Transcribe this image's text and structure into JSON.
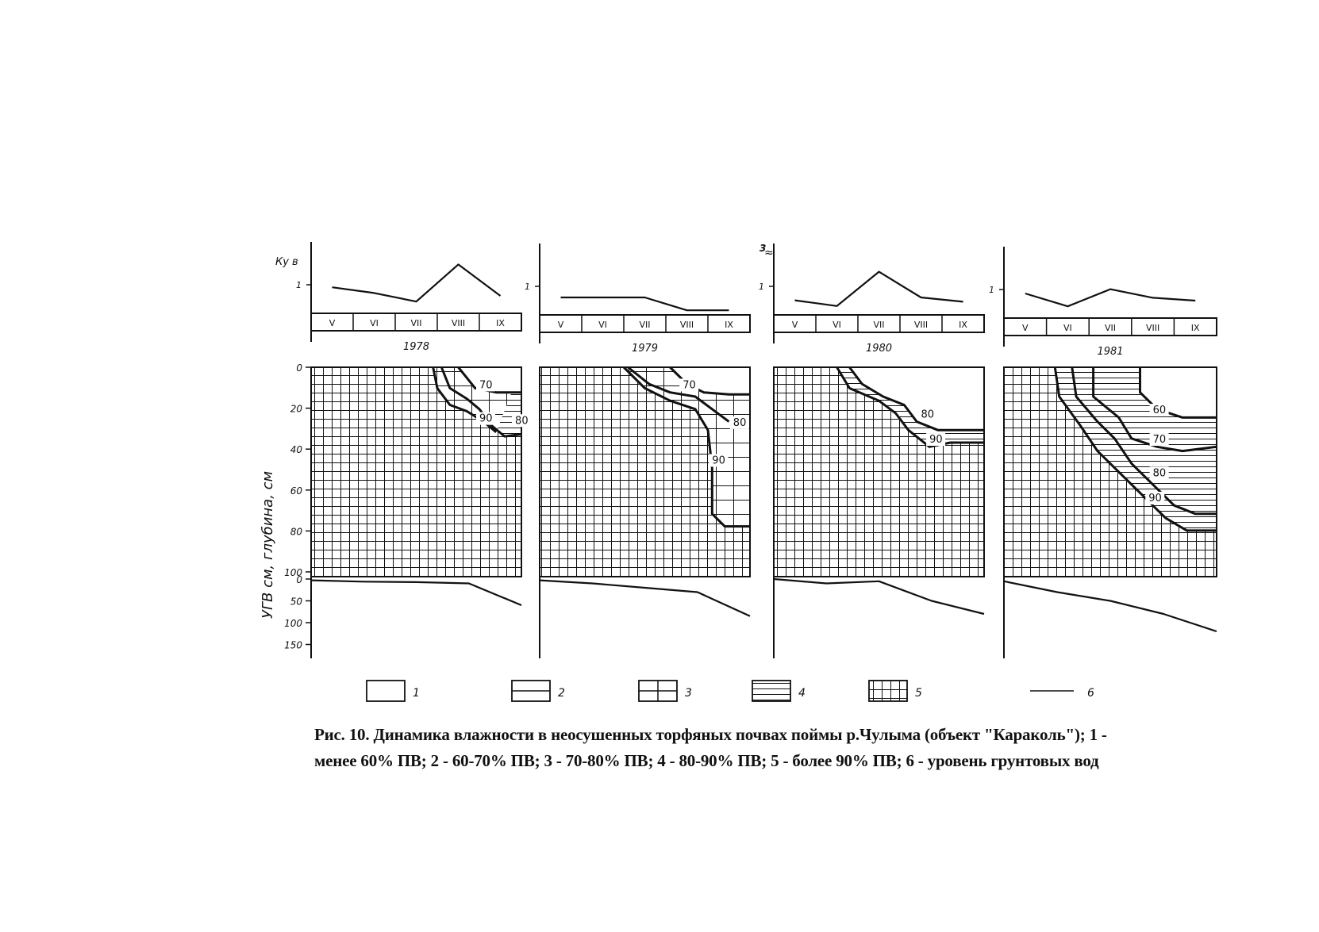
{
  "figure": {
    "kuv_label": "Ку в",
    "kuv_tick": "1",
    "kuv_break_label": "3",
    "depth_axis_title": "УГВ см,   глубина, см",
    "depth_ticks": [
      "0",
      "20",
      "40",
      "60",
      "80",
      "100"
    ],
    "gw_ticks": [
      "0",
      "50",
      "100",
      "150"
    ],
    "months": [
      "V",
      "VI",
      "VII",
      "VIII",
      "IX"
    ]
  },
  "chart_data": [
    {
      "type": "line",
      "title": "1978",
      "kuv": {
        "x": [
          "V",
          "VI",
          "VII",
          "VIII",
          "IX"
        ],
        "y": [
          0.8,
          0.6,
          0.3,
          1.6,
          0.5
        ]
      },
      "moisture_isolines": [
        "70",
        "80",
        "90"
      ],
      "groundwater_depth_cm": {
        "x": [
          "V",
          "VI",
          "VII",
          "VIII",
          "IX"
        ],
        "y": [
          3,
          6,
          7,
          10,
          60
        ]
      }
    },
    {
      "type": "line",
      "title": "1979",
      "kuv": {
        "x": [
          "V",
          "VI",
          "VII",
          "VIII",
          "IX"
        ],
        "y": [
          0.5,
          0.5,
          0.5,
          0.05,
          0.05
        ]
      },
      "moisture_isolines": [
        "70",
        "80",
        "90"
      ],
      "groundwater_depth_cm": {
        "x": [
          "V",
          "VI",
          "VII",
          "VIII",
          "IX"
        ],
        "y": [
          3,
          10,
          20,
          30,
          85
        ]
      }
    },
    {
      "type": "line",
      "title": "1980",
      "kuv": {
        "x": [
          "V",
          "VI",
          "VII",
          "VIII",
          "IX"
        ],
        "y": [
          0.4,
          0.2,
          1.4,
          0.5,
          0.35
        ],
        "y_break": "3"
      },
      "moisture_isolines": [
        "80",
        "90"
      ],
      "groundwater_depth_cm": {
        "x": [
          "V",
          "VI",
          "VII",
          "VIII",
          "IX"
        ],
        "y": [
          0,
          10,
          5,
          50,
          80
        ]
      }
    },
    {
      "type": "line",
      "title": "1981",
      "kuv": {
        "x": [
          "V",
          "VI",
          "VII",
          "VIII",
          "IX"
        ],
        "y": [
          0.75,
          0.3,
          0.9,
          0.6,
          0.5
        ]
      },
      "moisture_isolines": [
        "60",
        "70",
        "80",
        "90"
      ],
      "groundwater_depth_cm": {
        "x": [
          "V",
          "VI",
          "VII",
          "VIII",
          "IX"
        ],
        "y": [
          5,
          30,
          50,
          80,
          120
        ]
      }
    }
  ],
  "legend": [
    {
      "num": "1",
      "pattern": "empty"
    },
    {
      "num": "2",
      "pattern": "h-line"
    },
    {
      "num": "3",
      "pattern": "cross"
    },
    {
      "num": "4",
      "pattern": "h-lines"
    },
    {
      "num": "5",
      "pattern": "grid"
    },
    {
      "num": "6",
      "pattern": "line"
    }
  ],
  "caption": {
    "line1": "Рис. 10. Динамика влажности в неосушенных торфяных почвах поймы р.Чулыма (объект \"Караколь\"); 1 -",
    "line2": "менее 60% ПВ; 2 - 60-70% ПВ; 3 - 70-80% ПВ; 4 - 80-90% ПВ; 5 - более 90% ПВ; 6 - уровень грунтовых вод"
  },
  "colors": {
    "ink": "#111111",
    "background": "#ffffff"
  }
}
